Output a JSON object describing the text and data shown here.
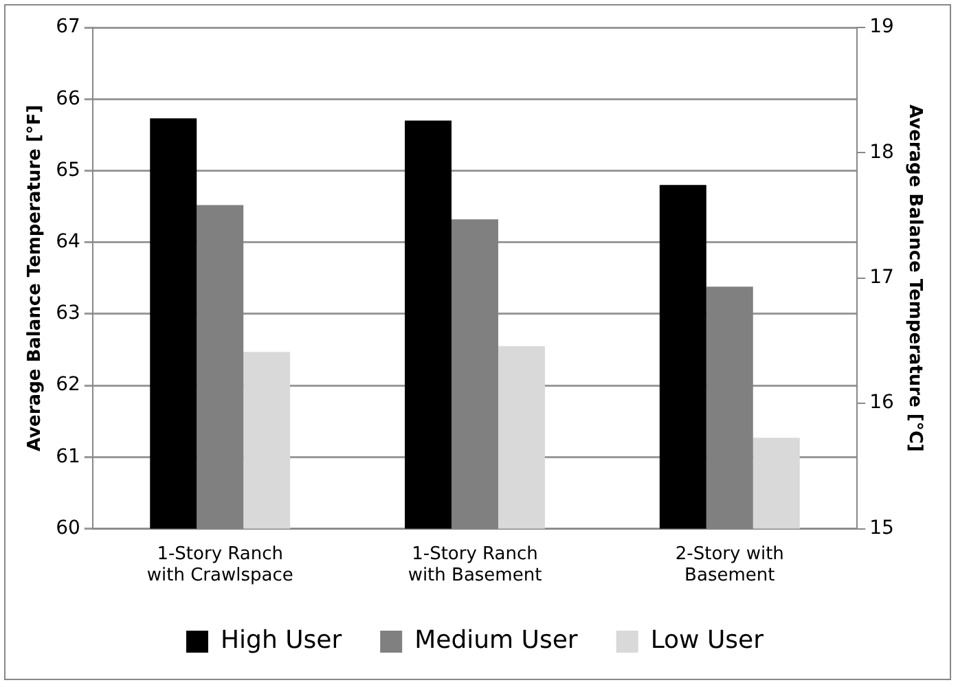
{
  "chart_data": {
    "type": "bar",
    "categories": [
      "1-Story Ranch with Crawlspace",
      "1-Story Ranch with Basement",
      "2-Story with Basement"
    ],
    "series": [
      {
        "name": "High User",
        "color": "#000000",
        "values": [
          65.73,
          65.7,
          64.8
        ]
      },
      {
        "name": "Medium User",
        "color": "#808080",
        "values": [
          64.52,
          64.32,
          63.38
        ]
      },
      {
        "name": "Low User",
        "color": "#d9d9d9",
        "values": [
          62.47,
          62.55,
          61.27
        ]
      }
    ],
    "ylabel": "Average Balance Temperature [°F]",
    "y2label": "Average Balance Temperature [°C]",
    "ylim": [
      60,
      67
    ],
    "yticks": [
      60,
      61,
      62,
      63,
      64,
      65,
      66,
      67
    ],
    "y2lim": [
      15,
      19
    ],
    "y2ticks": [
      15,
      16,
      17,
      18,
      19
    ],
    "grid": "y",
    "legend": "bottom"
  }
}
